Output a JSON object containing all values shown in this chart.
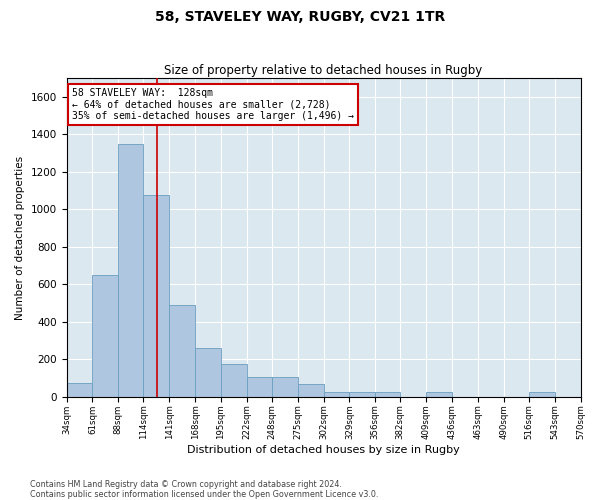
{
  "title": "58, STAVELEY WAY, RUGBY, CV21 1TR",
  "subtitle": "Size of property relative to detached houses in Rugby",
  "xlabel": "Distribution of detached houses by size in Rugby",
  "ylabel": "Number of detached properties",
  "bar_color": "#aec6df",
  "bar_edge_color": "#6a9fc0",
  "background_color": "#dce8f0",
  "grid_color": "#ffffff",
  "annotation_line1": "58 STAVELEY WAY:  128sqm",
  "annotation_line2": "← 64% of detached houses are smaller (2,728)",
  "annotation_line3": "35% of semi-detached houses are larger (1,496) →",
  "annotation_box_color": "#ffffff",
  "annotation_box_edge_color": "#cc0000",
  "marker_line_color": "#cc0000",
  "property_size_sqm": 128,
  "bin_labels": [
    "34sqm",
    "61sqm",
    "88sqm",
    "114sqm",
    "141sqm",
    "168sqm",
    "195sqm",
    "222sqm",
    "248sqm",
    "275sqm",
    "302sqm",
    "329sqm",
    "356sqm",
    "382sqm",
    "409sqm",
    "436sqm",
    "463sqm",
    "490sqm",
    "516sqm",
    "543sqm",
    "570sqm"
  ],
  "bin_edges": [
    34,
    61,
    88,
    114,
    141,
    168,
    195,
    222,
    248,
    275,
    302,
    329,
    356,
    382,
    409,
    436,
    463,
    490,
    516,
    543,
    570
  ],
  "bar_heights": [
    75,
    650,
    1350,
    1075,
    490,
    260,
    175,
    105,
    105,
    70,
    25,
    25,
    25,
    0,
    25,
    0,
    0,
    0,
    25,
    0,
    0
  ],
  "ylim": [
    0,
    1700
  ],
  "yticks": [
    0,
    200,
    400,
    600,
    800,
    1000,
    1200,
    1400,
    1600
  ],
  "fig_width": 6.0,
  "fig_height": 5.0,
  "footer_line1": "Contains HM Land Registry data © Crown copyright and database right 2024.",
  "footer_line2": "Contains public sector information licensed under the Open Government Licence v3.0."
}
